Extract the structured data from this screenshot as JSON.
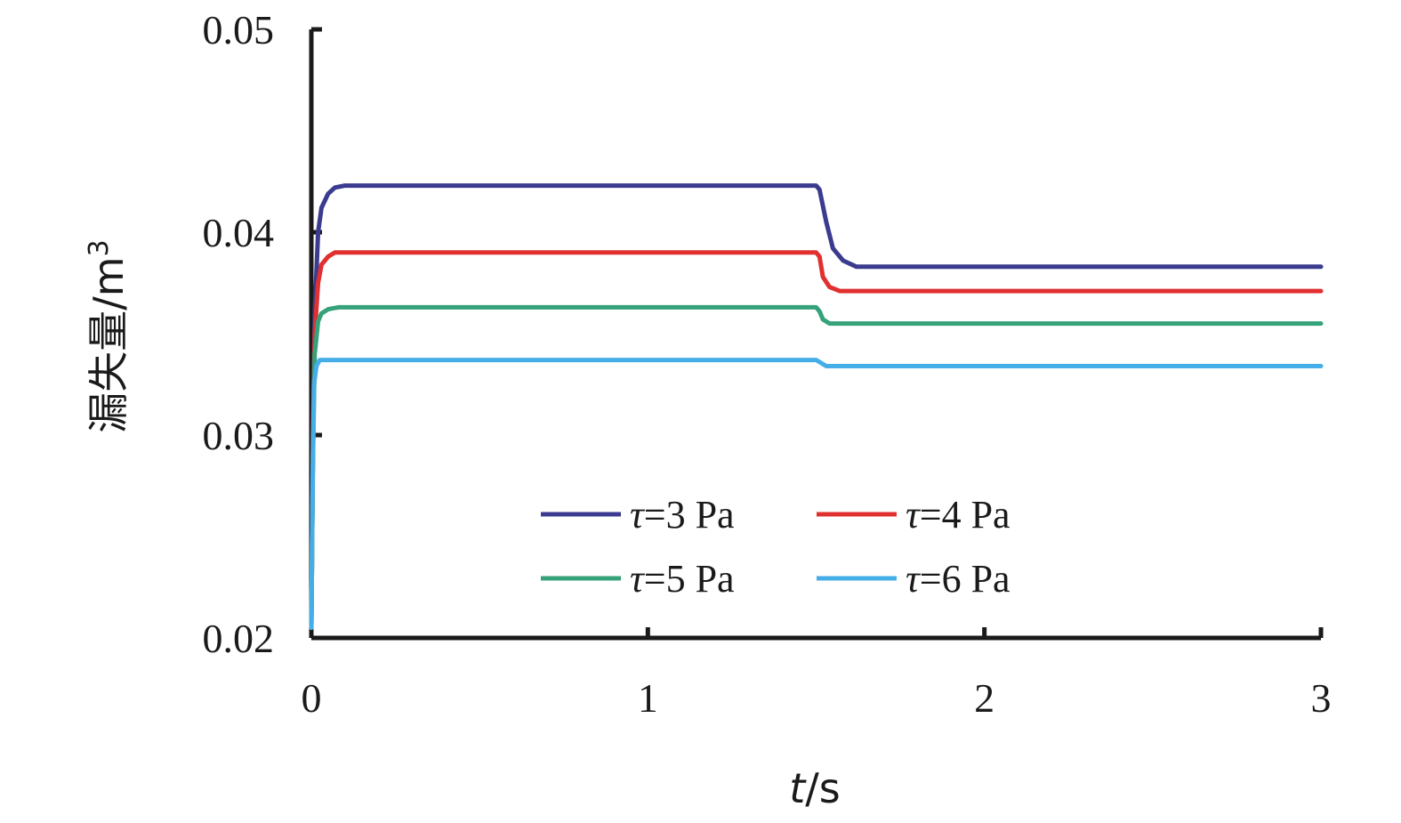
{
  "chart_data": {
    "type": "line",
    "xlabel": "t/s",
    "xlabel_italic": "t",
    "xlabel_unit": "/s",
    "ylabel": "漏失量/m",
    "ylabel_sup": "3",
    "xlim": [
      0,
      3
    ],
    "ylim": [
      0.02,
      0.05
    ],
    "x_ticks": [
      0,
      1,
      2,
      3
    ],
    "x_tick_labels": [
      "0",
      "1",
      "2",
      "3"
    ],
    "y_ticks": [
      0.02,
      0.03,
      0.04,
      0.05
    ],
    "y_tick_labels": [
      "0.02",
      "0.03",
      "0.04",
      "0.05"
    ],
    "grid": false,
    "legend_position": "lower-center",
    "series": [
      {
        "name": "τ=3 Pa",
        "name_prefix": "τ",
        "name_suffix": "=3 Pa",
        "color": "#3b3b8f",
        "x": [
          0,
          0.005,
          0.01,
          0.02,
          0.03,
          0.05,
          0.07,
          0.1,
          0.13,
          1.5,
          1.51,
          1.53,
          1.55,
          1.58,
          1.62,
          3
        ],
        "y": [
          0.0205,
          0.03,
          0.036,
          0.04,
          0.0412,
          0.0419,
          0.0422,
          0.0423,
          0.0423,
          0.0423,
          0.0421,
          0.0405,
          0.0392,
          0.0386,
          0.0383,
          0.0383
        ]
      },
      {
        "name": "τ=4 Pa",
        "name_prefix": "τ",
        "name_suffix": "=4 Pa",
        "color": "#e03030",
        "x": [
          0,
          0.005,
          0.01,
          0.02,
          0.03,
          0.05,
          0.07,
          0.1,
          1.5,
          1.51,
          1.52,
          1.54,
          1.57,
          1.6,
          3
        ],
        "y": [
          0.0205,
          0.03,
          0.035,
          0.0375,
          0.0384,
          0.0388,
          0.039,
          0.039,
          0.039,
          0.0388,
          0.0378,
          0.0373,
          0.0371,
          0.0371,
          0.0371
        ]
      },
      {
        "name": "τ=5 Pa",
        "name_prefix": "τ",
        "name_suffix": "=5 Pa",
        "color": "#35a27a",
        "x": [
          0,
          0.005,
          0.01,
          0.02,
          0.03,
          0.05,
          0.08,
          1.5,
          1.51,
          1.52,
          1.54,
          1.57,
          3
        ],
        "y": [
          0.0205,
          0.029,
          0.034,
          0.0356,
          0.036,
          0.0362,
          0.0363,
          0.0363,
          0.0361,
          0.0357,
          0.0355,
          0.0355,
          0.0355
        ]
      },
      {
        "name": "τ=6 Pa",
        "name_prefix": "τ",
        "name_suffix": "=6 Pa",
        "color": "#45aee8",
        "x": [
          0,
          0.004,
          0.008,
          0.015,
          0.025,
          0.04,
          1.5,
          1.51,
          1.53,
          1.56,
          3
        ],
        "y": [
          0.0205,
          0.028,
          0.0325,
          0.0334,
          0.0337,
          0.0337,
          0.0337,
          0.0336,
          0.0334,
          0.0334,
          0.0334
        ]
      }
    ]
  }
}
